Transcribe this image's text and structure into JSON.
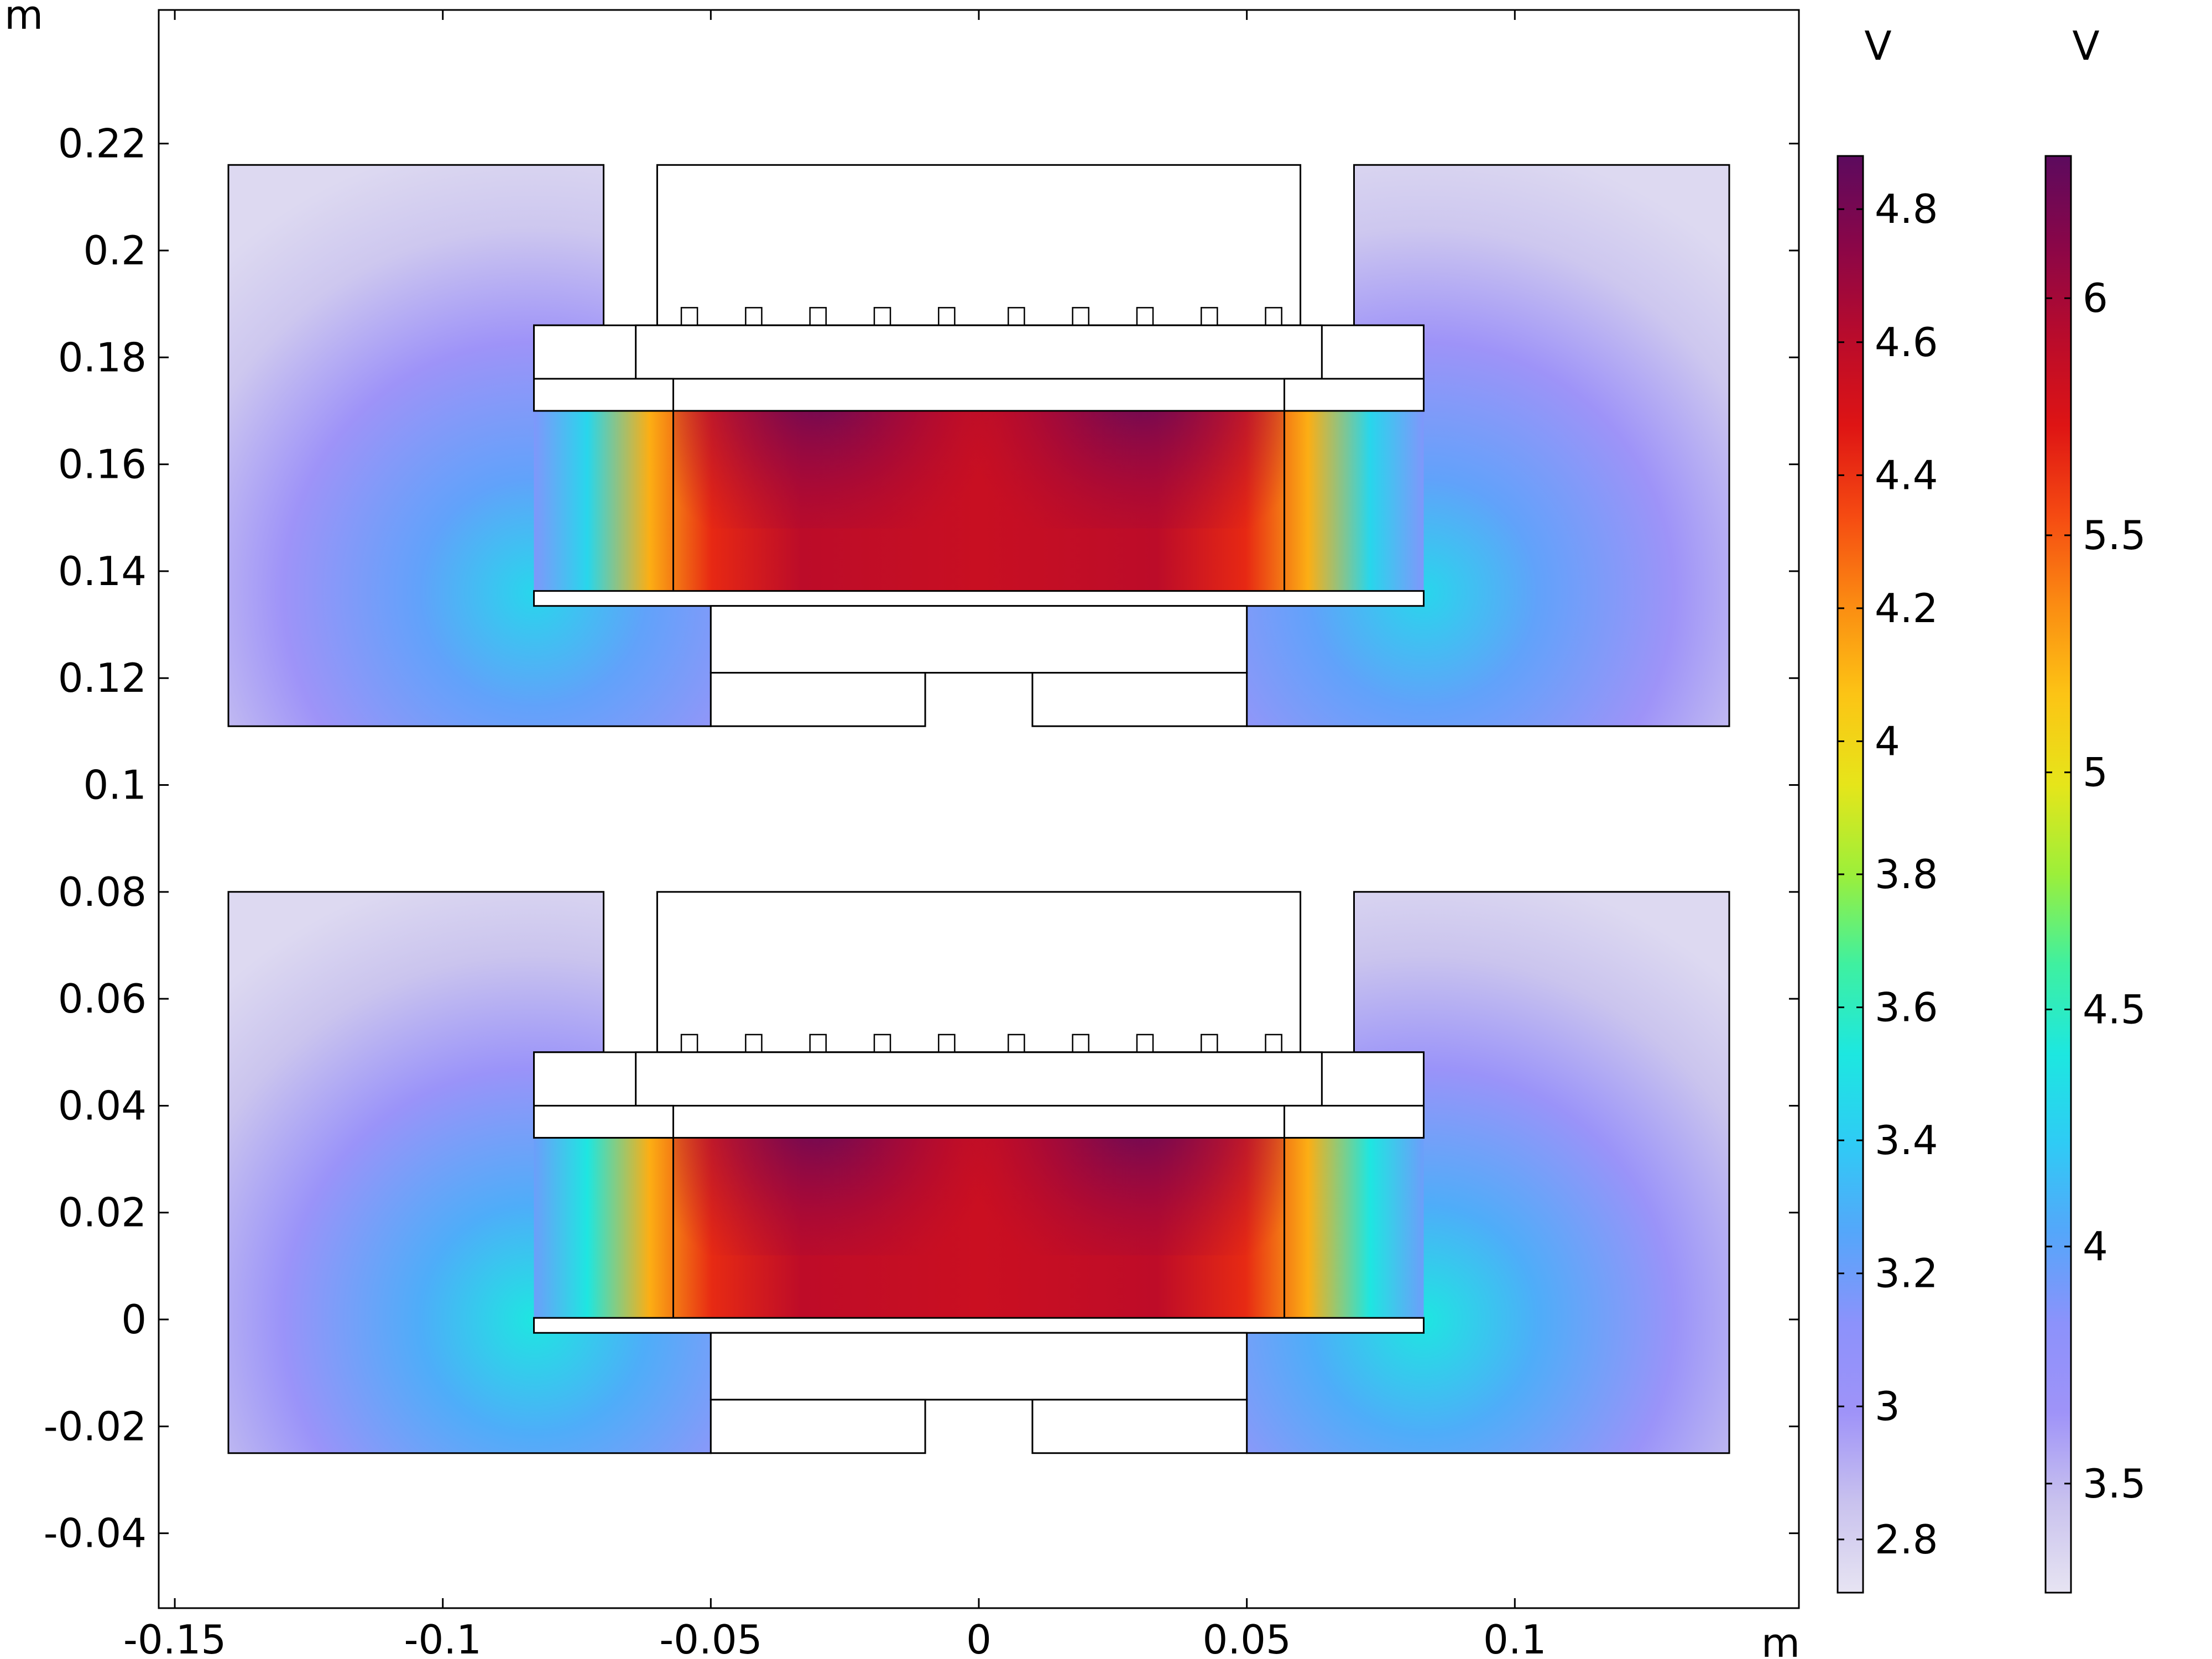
{
  "chart_data": {
    "type": "heatmap",
    "title": "",
    "x_unit": "m",
    "y_unit": "m",
    "xlim": [
      -0.153,
      0.153
    ],
    "ylim": [
      -0.054,
      0.245
    ],
    "x_ticks": [
      -0.15,
      -0.1,
      -0.05,
      0,
      0.05,
      0.1
    ],
    "x_tick_labels": [
      "-0.15",
      "-0.1",
      "-0.05",
      "0",
      "0.05",
      "0.1"
    ],
    "y_ticks": [
      -0.04,
      -0.02,
      0,
      0.02,
      0.04,
      0.06,
      0.08,
      0.1,
      0.12,
      0.14,
      0.16,
      0.18,
      0.2,
      0.22
    ],
    "y_tick_labels": [
      "-0.04",
      "-0.02",
      "0",
      "0.02",
      "0.04",
      "0.06",
      "0.08",
      "0.1",
      "0.12",
      "0.14",
      "0.16",
      "0.18",
      "0.2",
      "0.22"
    ],
    "colormap": [
      "#e7e4f2",
      "#c9c2ee",
      "#9f93f8",
      "#8c92fb",
      "#55a6fa",
      "#2fcbf5",
      "#1de7e0",
      "#3ff0a0",
      "#9cef3a",
      "#e6e51a",
      "#fcc415",
      "#fb8c12",
      "#f54a12",
      "#de1414",
      "#b80b2c",
      "#8a0648",
      "#5c0a5e"
    ],
    "plots": [
      {
        "name": "upper",
        "y_offset": 0.136,
        "vmin": 2.72,
        "vmax": 4.88,
        "air_gap_peak": 4.85,
        "air_gap_edge": 3.45
      },
      {
        "name": "lower",
        "y_offset": 0.0,
        "vmin": 3.27,
        "vmax": 6.3,
        "air_gap_peak": 6.25,
        "air_gap_edge": 4.4
      }
    ],
    "colorbars": [
      {
        "unit": "V",
        "min": 2.72,
        "max": 4.88,
        "ticks": [
          2.8,
          3,
          3.2,
          3.4,
          3.6,
          3.8,
          4,
          4.2,
          4.4,
          4.6,
          4.8
        ],
        "tick_labels": [
          "2.8",
          "3",
          "3.2",
          "3.4",
          "3.6",
          "3.8",
          "4",
          "4.2",
          "4.4",
          "4.6",
          "4.8"
        ]
      },
      {
        "unit": "V",
        "min": 3.27,
        "max": 6.3,
        "ticks": [
          3.5,
          4,
          4.5,
          5,
          5.5,
          6
        ],
        "tick_labels": [
          "3.5",
          "4",
          "4.5",
          "5",
          "5.5",
          "6"
        ]
      }
    ]
  }
}
